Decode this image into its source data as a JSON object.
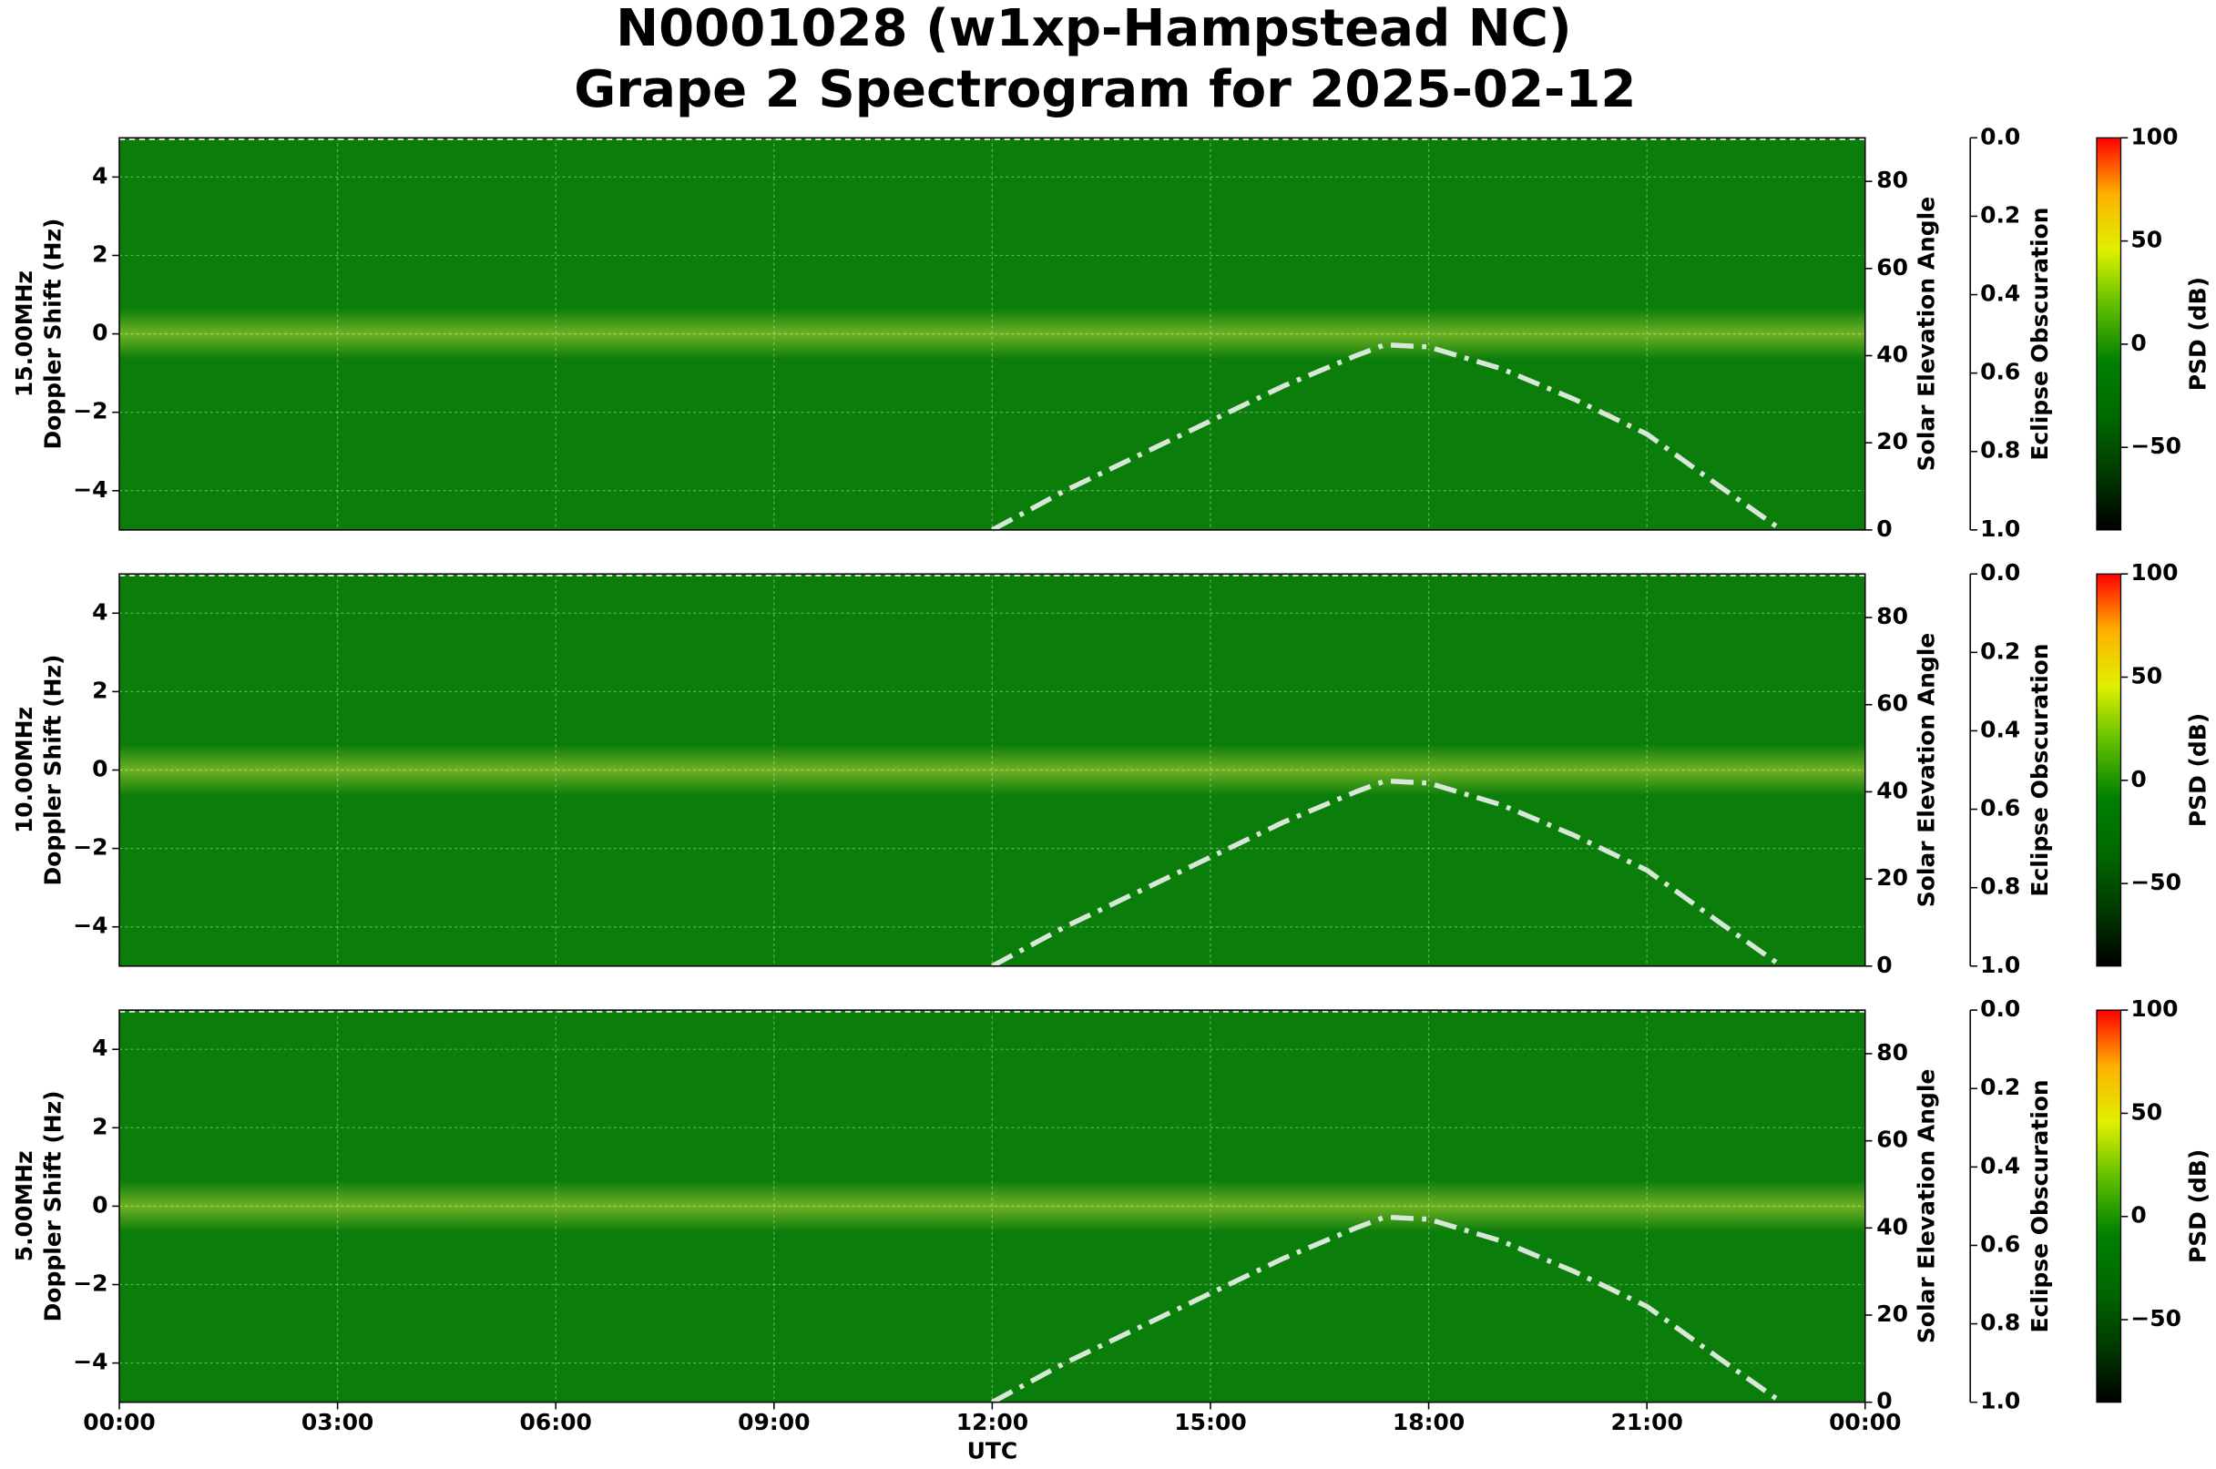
{
  "title": [
    "N0001028 (w1xp-Hampstead NC)",
    "Grape 2 Spectrogram for 2025-02-12"
  ],
  "chart_data": [
    {
      "type": "spectrogram",
      "color": "#0b7d0b",
      "ylabel": [
        "15.00MHz",
        "Doppler Shift (Hz)"
      ],
      "ylim": [
        -5,
        5
      ],
      "yticks": [
        {
          "value": -4,
          "label": "−4"
        },
        {
          "value": -2,
          "label": "−2"
        },
        0,
        2,
        4
      ],
      "y2label": "Solar Elevation Angle",
      "y2lim": [
        0,
        90
      ],
      "y2ticks": [
        0,
        20,
        40,
        60,
        80
      ],
      "y3label": "Eclipse Obscuration",
      "y3lim": [
        0,
        1
      ],
      "y3ticks": [
        {
          "value": 0,
          "label": "0.0"
        },
        {
          "value": 0.2,
          "label": "0.2"
        },
        {
          "value": 0.4,
          "label": "0.4"
        },
        {
          "value": 0.6,
          "label": "0.6"
        },
        {
          "value": 0.8,
          "label": "0.8"
        },
        {
          "value": 1,
          "label": "1.0"
        }
      ],
      "colorbar_label": "PSD (dB)",
      "clim": [
        -90,
        100
      ],
      "cticks": [
        {
          "value": -50,
          "label": "−50"
        },
        0,
        50,
        100
      ],
      "colormap": [
        "#000000",
        "#003a00",
        "#006800",
        "#008000",
        "#5fbf00",
        "#e0f000",
        "#ffb000",
        "#ff0000"
      ],
      "x": [
        12,
        13,
        14,
        15,
        16,
        17,
        17.4,
        18,
        19,
        20,
        21,
        22,
        22.85
      ],
      "series": [
        {
          "color": "#d8e8d8",
          "axis": "y2",
          "values": [
            0,
            9,
            17,
            25,
            33,
            40,
            42.5,
            42,
            37,
            30,
            22,
            10,
            0
          ]
        }
      ]
    },
    {
      "type": "spectrogram",
      "color": "#0b7d0b",
      "ylabel": [
        "10.00MHz",
        "Doppler Shift (Hz)"
      ],
      "ylim": [
        -5,
        5
      ],
      "yticks": [
        {
          "value": -4,
          "label": "−4"
        },
        {
          "value": -2,
          "label": "−2"
        },
        0,
        2,
        4
      ],
      "y2label": "Solar Elevation Angle",
      "y2lim": [
        0,
        90
      ],
      "y2ticks": [
        0,
        20,
        40,
        60,
        80
      ],
      "y3label": "Eclipse Obscuration",
      "y3lim": [
        0,
        1
      ],
      "y3ticks": [
        {
          "value": 0,
          "label": "0.0"
        },
        {
          "value": 0.2,
          "label": "0.2"
        },
        {
          "value": 0.4,
          "label": "0.4"
        },
        {
          "value": 0.6,
          "label": "0.6"
        },
        {
          "value": 0.8,
          "label": "0.8"
        },
        {
          "value": 1,
          "label": "1.0"
        }
      ],
      "colorbar_label": "PSD (dB)",
      "clim": [
        -90,
        100
      ],
      "cticks": [
        {
          "value": -50,
          "label": "−50"
        },
        0,
        50,
        100
      ],
      "colormap": [
        "#000000",
        "#003a00",
        "#006800",
        "#008000",
        "#5fbf00",
        "#e0f000",
        "#ffb000",
        "#ff0000"
      ],
      "x": [
        12,
        13,
        14,
        15,
        16,
        17,
        17.4,
        18,
        19,
        20,
        21,
        22,
        22.85
      ],
      "series": [
        {
          "color": "#d8e8d8",
          "axis": "y2",
          "values": [
            0,
            9,
            17,
            25,
            33,
            40,
            42.5,
            42,
            37,
            30,
            22,
            10,
            0
          ]
        }
      ]
    },
    {
      "type": "spectrogram",
      "color": "#0b7d0b",
      "ylabel": [
        "5.00MHz",
        "Doppler Shift (Hz)"
      ],
      "ylim": [
        -5,
        5
      ],
      "yticks": [
        {
          "value": -4,
          "label": "−4"
        },
        {
          "value": -2,
          "label": "−2"
        },
        0,
        2,
        4
      ],
      "y2label": "Solar Elevation Angle",
      "y2lim": [
        0,
        90
      ],
      "y2ticks": [
        0,
        20,
        40,
        60,
        80
      ],
      "y3label": "Eclipse Obscuration",
      "y3lim": [
        0,
        1
      ],
      "y3ticks": [
        {
          "value": 0,
          "label": "0.0"
        },
        {
          "value": 0.2,
          "label": "0.2"
        },
        {
          "value": 0.4,
          "label": "0.4"
        },
        {
          "value": 0.6,
          "label": "0.6"
        },
        {
          "value": 0.8,
          "label": "0.8"
        },
        {
          "value": 1,
          "label": "1.0"
        }
      ],
      "colorbar_label": "PSD (dB)",
      "clim": [
        -90,
        100
      ],
      "cticks": [
        {
          "value": -50,
          "label": "−50"
        },
        0,
        50,
        100
      ],
      "colormap": [
        "#000000",
        "#003a00",
        "#006800",
        "#008000",
        "#5fbf00",
        "#e0f000",
        "#ffb000",
        "#ff0000"
      ],
      "xlabel": "UTC",
      "xlim": [
        0,
        24
      ],
      "xticks": [
        {
          "value": 0,
          "label": "00:00"
        },
        {
          "value": 3,
          "label": "03:00"
        },
        {
          "value": 6,
          "label": "06:00"
        },
        {
          "value": 9,
          "label": "09:00"
        },
        {
          "value": 12,
          "label": "12:00"
        },
        {
          "value": 15,
          "label": "15:00"
        },
        {
          "value": 18,
          "label": "18:00"
        },
        {
          "value": 21,
          "label": "21:00"
        },
        {
          "value": 24,
          "label": "00:00"
        }
      ],
      "x": [
        12,
        13,
        14,
        15,
        16,
        17,
        17.4,
        18,
        19,
        20,
        21,
        22,
        22.85
      ],
      "series": [
        {
          "color": "#d8e8d8",
          "axis": "y2",
          "values": [
            0,
            9,
            17,
            25,
            33,
            40,
            42.5,
            42,
            37,
            30,
            22,
            10,
            0
          ]
        }
      ]
    }
  ]
}
